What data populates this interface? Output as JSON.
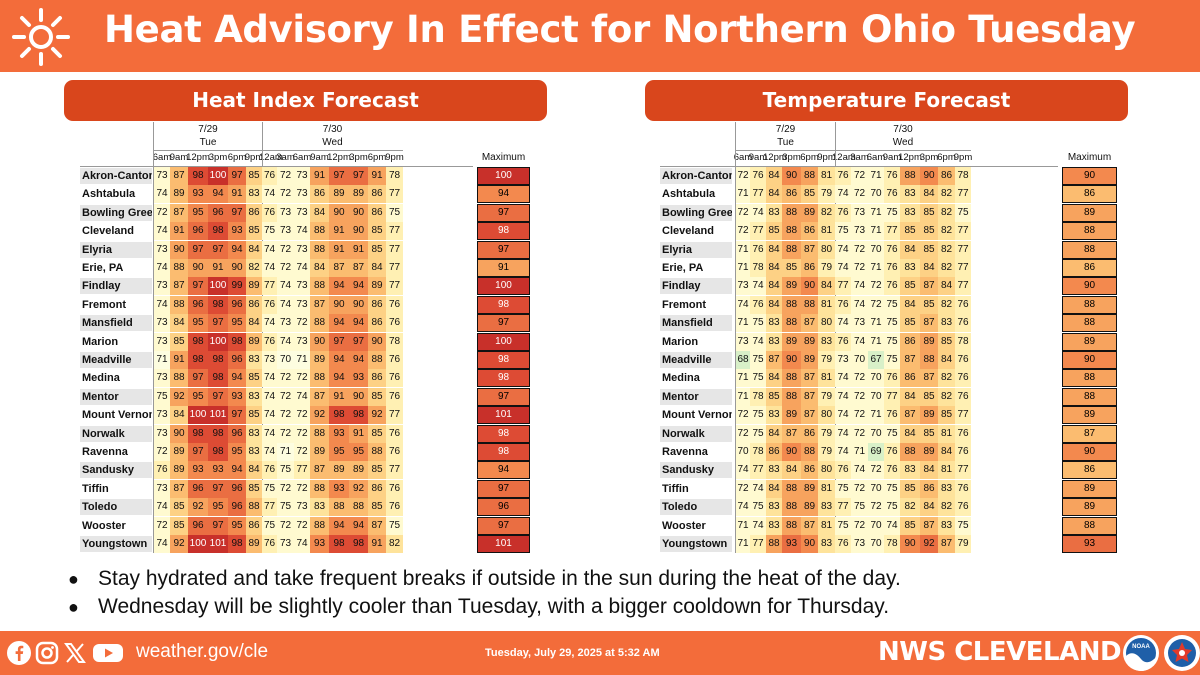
{
  "title": "Heat Advisory In Effect for Northern Ohio Tuesday",
  "panels": [
    {
      "id": "heat-index",
      "heading": "Heat Index Forecast",
      "days": [
        {
          "date": "7/29",
          "day": "Tue"
        },
        {
          "date": "7/30",
          "day": "Wed"
        }
      ],
      "hours": [
        "6am",
        "9am",
        "12pm",
        "3pm",
        "6pm",
        "9pm",
        "12am",
        "3am",
        "6am",
        "9am",
        "12pm",
        "3pm",
        "6pm",
        "9pm"
      ],
      "max_label": "Maximum",
      "rows": [
        {
          "name": "Akron-Canton",
          "values": [
            73,
            87,
            98,
            100,
            97,
            85,
            76,
            72,
            73,
            91,
            97,
            97,
            91,
            78
          ],
          "max": 100
        },
        {
          "name": "Ashtabula",
          "values": [
            74,
            89,
            93,
            94,
            91,
            83,
            74,
            72,
            73,
            86,
            89,
            89,
            86,
            77
          ],
          "max": 94
        },
        {
          "name": "Bowling Green",
          "values": [
            72,
            87,
            95,
            96,
            97,
            86,
            76,
            73,
            73,
            84,
            90,
            90,
            86,
            75
          ],
          "max": 97
        },
        {
          "name": "Cleveland",
          "values": [
            74,
            91,
            96,
            98,
            93,
            85,
            75,
            73,
            74,
            88,
            91,
            90,
            85,
            77
          ],
          "max": 98
        },
        {
          "name": "Elyria",
          "values": [
            73,
            90,
            97,
            97,
            94,
            84,
            74,
            72,
            73,
            88,
            91,
            91,
            85,
            77
          ],
          "max": 97
        },
        {
          "name": "Erie, PA",
          "values": [
            74,
            88,
            90,
            91,
            90,
            82,
            74,
            72,
            74,
            84,
            87,
            87,
            84,
            77
          ],
          "max": 91
        },
        {
          "name": "Findlay",
          "values": [
            73,
            87,
            97,
            100,
            99,
            89,
            77,
            74,
            73,
            88,
            94,
            94,
            89,
            77
          ],
          "max": 100
        },
        {
          "name": "Fremont",
          "values": [
            74,
            88,
            96,
            98,
            96,
            86,
            76,
            74,
            73,
            87,
            90,
            90,
            86,
            76
          ],
          "max": 98
        },
        {
          "name": "Mansfield",
          "values": [
            73,
            84,
            95,
            97,
            95,
            84,
            74,
            73,
            72,
            88,
            94,
            94,
            86,
            76
          ],
          "max": 97
        },
        {
          "name": "Marion",
          "values": [
            73,
            85,
            98,
            100,
            98,
            89,
            76,
            74,
            73,
            90,
            97,
            97,
            90,
            78
          ],
          "max": 100
        },
        {
          "name": "Meadville",
          "values": [
            71,
            91,
            98,
            98,
            96,
            83,
            73,
            70,
            71,
            89,
            94,
            94,
            88,
            76
          ],
          "max": 98
        },
        {
          "name": "Medina",
          "values": [
            73,
            88,
            97,
            98,
            94,
            85,
            74,
            72,
            72,
            88,
            94,
            93,
            86,
            76
          ],
          "max": 98
        },
        {
          "name": "Mentor",
          "values": [
            75,
            92,
            95,
            97,
            93,
            83,
            74,
            72,
            74,
            87,
            91,
            90,
            85,
            76
          ],
          "max": 97
        },
        {
          "name": "Mount Vernon",
          "values": [
            73,
            84,
            100,
            101,
            97,
            85,
            74,
            72,
            72,
            92,
            98,
            98,
            92,
            77
          ],
          "max": 101
        },
        {
          "name": "Norwalk",
          "values": [
            73,
            90,
            98,
            98,
            96,
            83,
            74,
            72,
            72,
            88,
            93,
            91,
            85,
            76
          ],
          "max": 98
        },
        {
          "name": "Ravenna",
          "values": [
            72,
            89,
            97,
            98,
            95,
            83,
            74,
            71,
            72,
            89,
            95,
            95,
            88,
            76
          ],
          "max": 98
        },
        {
          "name": "Sandusky",
          "values": [
            76,
            89,
            93,
            93,
            94,
            84,
            76,
            75,
            77,
            87,
            89,
            89,
            85,
            77
          ],
          "max": 94
        },
        {
          "name": "Tiffin",
          "values": [
            73,
            87,
            96,
            97,
            96,
            85,
            75,
            72,
            72,
            88,
            93,
            92,
            86,
            76
          ],
          "max": 97
        },
        {
          "name": "Toledo",
          "values": [
            74,
            85,
            92,
            95,
            96,
            88,
            77,
            75,
            73,
            83,
            88,
            88,
            85,
            76
          ],
          "max": 96
        },
        {
          "name": "Wooster",
          "values": [
            72,
            85,
            96,
            97,
            95,
            86,
            75,
            72,
            72,
            88,
            94,
            94,
            87,
            75
          ],
          "max": 97
        },
        {
          "name": "Youngstown",
          "values": [
            74,
            92,
            100,
            101,
            98,
            89,
            76,
            73,
            74,
            93,
            98,
            98,
            91,
            82
          ],
          "max": 101
        }
      ]
    },
    {
      "id": "temperature",
      "heading": "Temperature Forecast",
      "days": [
        {
          "date": "7/29",
          "day": "Tue"
        },
        {
          "date": "7/30",
          "day": "Wed"
        }
      ],
      "hours": [
        "6am",
        "9am",
        "12pm",
        "3pm",
        "6pm",
        "9pm",
        "12am",
        "3am",
        "6am",
        "9am",
        "12pm",
        "3pm",
        "6pm",
        "9pm"
      ],
      "max_label": "Maximum",
      "rows": [
        {
          "name": "Akron-Canton",
          "values": [
            72,
            76,
            84,
            90,
            88,
            81,
            76,
            72,
            71,
            76,
            88,
            90,
            86,
            78
          ],
          "max": 90
        },
        {
          "name": "Ashtabula",
          "values": [
            71,
            77,
            84,
            86,
            85,
            79,
            74,
            72,
            70,
            76,
            83,
            84,
            82,
            77
          ],
          "max": 86
        },
        {
          "name": "Bowling Green",
          "values": [
            72,
            74,
            83,
            88,
            89,
            82,
            76,
            73,
            71,
            75,
            83,
            85,
            82,
            75
          ],
          "max": 89
        },
        {
          "name": "Cleveland",
          "values": [
            72,
            77,
            85,
            88,
            86,
            81,
            75,
            73,
            71,
            77,
            85,
            85,
            82,
            77
          ],
          "max": 88
        },
        {
          "name": "Elyria",
          "values": [
            71,
            76,
            84,
            88,
            87,
            80,
            74,
            72,
            70,
            76,
            84,
            85,
            82,
            77
          ],
          "max": 88
        },
        {
          "name": "Erie, PA",
          "values": [
            71,
            78,
            84,
            85,
            86,
            79,
            74,
            72,
            71,
            76,
            83,
            84,
            82,
            77
          ],
          "max": 86
        },
        {
          "name": "Findlay",
          "values": [
            73,
            74,
            84,
            89,
            90,
            84,
            77,
            74,
            72,
            76,
            85,
            87,
            84,
            77
          ],
          "max": 90
        },
        {
          "name": "Fremont",
          "values": [
            74,
            76,
            84,
            88,
            88,
            81,
            76,
            74,
            72,
            75,
            84,
            85,
            82,
            76
          ],
          "max": 88
        },
        {
          "name": "Mansfield",
          "values": [
            71,
            75,
            83,
            88,
            87,
            80,
            74,
            73,
            71,
            75,
            85,
            87,
            83,
            76
          ],
          "max": 88
        },
        {
          "name": "Marion",
          "values": [
            73,
            74,
            83,
            89,
            89,
            83,
            76,
            74,
            71,
            75,
            86,
            89,
            85,
            78
          ],
          "max": 89
        },
        {
          "name": "Meadville",
          "values": [
            68,
            75,
            87,
            90,
            89,
            79,
            73,
            70,
            67,
            75,
            87,
            88,
            84,
            76
          ],
          "max": 90
        },
        {
          "name": "Medina",
          "values": [
            71,
            75,
            84,
            88,
            87,
            81,
            74,
            72,
            70,
            76,
            86,
            87,
            82,
            76
          ],
          "max": 88
        },
        {
          "name": "Mentor",
          "values": [
            71,
            78,
            85,
            88,
            87,
            79,
            74,
            72,
            70,
            77,
            84,
            85,
            82,
            76
          ],
          "max": 88
        },
        {
          "name": "Mount Vernon",
          "values": [
            72,
            75,
            83,
            89,
            87,
            80,
            74,
            72,
            71,
            76,
            87,
            89,
            85,
            77
          ],
          "max": 89
        },
        {
          "name": "Norwalk",
          "values": [
            72,
            75,
            84,
            87,
            86,
            79,
            74,
            72,
            70,
            75,
            84,
            85,
            81,
            76
          ],
          "max": 87
        },
        {
          "name": "Ravenna",
          "values": [
            70,
            78,
            86,
            90,
            88,
            79,
            74,
            71,
            69,
            76,
            88,
            89,
            84,
            76
          ],
          "max": 90
        },
        {
          "name": "Sandusky",
          "values": [
            74,
            77,
            83,
            84,
            86,
            80,
            76,
            74,
            72,
            76,
            83,
            84,
            81,
            77
          ],
          "max": 86
        },
        {
          "name": "Tiffin",
          "values": [
            72,
            74,
            84,
            88,
            89,
            81,
            75,
            72,
            70,
            75,
            85,
            86,
            83,
            76
          ],
          "max": 89
        },
        {
          "name": "Toledo",
          "values": [
            74,
            75,
            83,
            88,
            89,
            83,
            77,
            75,
            72,
            75,
            82,
            84,
            82,
            76
          ],
          "max": 89
        },
        {
          "name": "Wooster",
          "values": [
            71,
            74,
            83,
            88,
            87,
            81,
            75,
            72,
            70,
            74,
            85,
            87,
            83,
            75
          ],
          "max": 88
        },
        {
          "name": "Youngstown",
          "values": [
            71,
            77,
            88,
            93,
            90,
            83,
            76,
            73,
            70,
            78,
            90,
            92,
            87,
            79
          ],
          "max": 93
        }
      ]
    }
  ],
  "bullets": [
    "Stay hydrated and take frequent breaks if outside in the sun during the heat of the day.",
    "Wednesday will be slightly cooler than Tuesday, with a bigger cooldown for Thursday."
  ],
  "footer": {
    "social_icons": [
      "facebook-icon",
      "instagram-icon",
      "x-icon",
      "youtube-icon"
    ],
    "website": "weather.gov/cle",
    "timestamp": "Tuesday, July 29, 2025 at 5:32 AM",
    "brand": "NWS CLEVELAND",
    "noaa_logo_text": "NOAA"
  },
  "colors": {
    "banner": "#f36c3a",
    "panel_heading": "#d9461c",
    "text_white": "#ffffff"
  }
}
